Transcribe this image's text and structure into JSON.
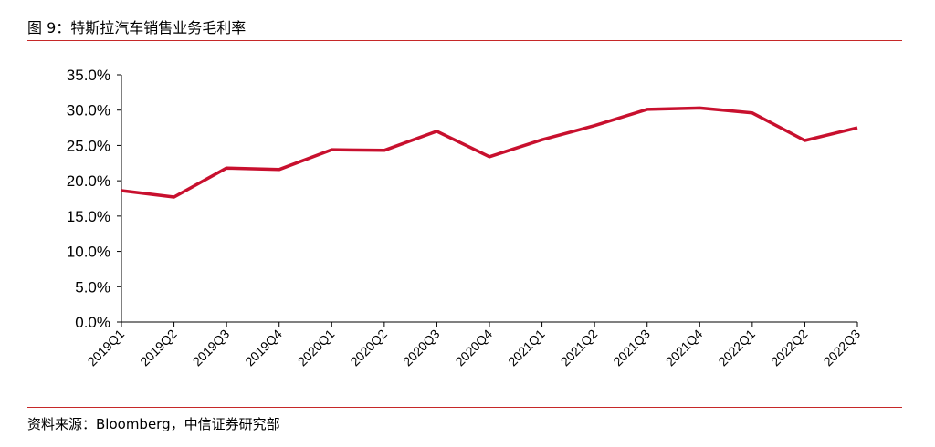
{
  "figure": {
    "title": "图 9：特斯拉汽车销售业务毛利率"
  },
  "source": {
    "text": "资料来源：Bloomberg，中信证券研究部"
  },
  "colors": {
    "series": "#c8102e",
    "rule": "#c62828",
    "axis": "#000000"
  },
  "chart_data": {
    "type": "line",
    "title": "",
    "xlabel": "",
    "ylabel": "",
    "categories": [
      "2019Q1",
      "2019Q2",
      "2019Q3",
      "2019Q4",
      "2020Q1",
      "2020Q2",
      "2020Q3",
      "2020Q4",
      "2021Q1",
      "2021Q2",
      "2021Q3",
      "2021Q4",
      "2022Q1",
      "2022Q2",
      "2022Q3"
    ],
    "series": [
      {
        "values": [
          18.6,
          17.7,
          21.8,
          21.6,
          24.4,
          24.3,
          27.0,
          23.4,
          25.8,
          27.8,
          30.1,
          30.3,
          29.6,
          25.7,
          27.5
        ]
      }
    ],
    "ylim": [
      0,
      35
    ],
    "yticks": [
      0,
      5,
      10,
      15,
      20,
      25,
      30,
      35
    ],
    "ytick_labels": [
      "0.0%",
      "5.0%",
      "10.0%",
      "15.0%",
      "20.0%",
      "25.0%",
      "30.0%",
      "35.0%"
    ],
    "grid": false,
    "legend": "none"
  }
}
